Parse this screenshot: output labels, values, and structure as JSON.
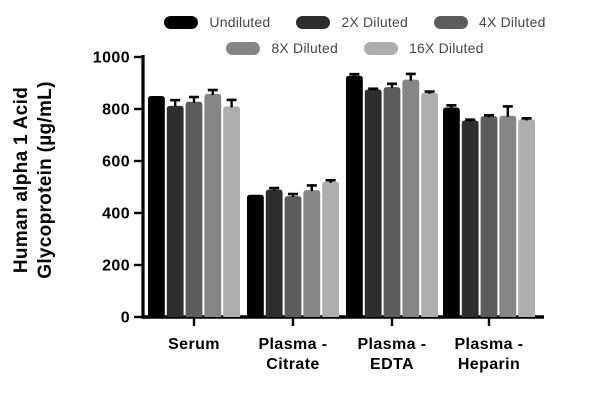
{
  "figure": {
    "background": "#ffffff",
    "axis_color": "#000000",
    "error_bar_color": "#000000",
    "legend_text_color": "#474747"
  },
  "chart_data": {
    "type": "bar",
    "title": "",
    "ylabel": "Human alpha 1 Acid Glycoprotein (µg/mL)",
    "ylabel_lines": [
      "Human alpha 1 Acid",
      "Glycoprotein (µg/mL)"
    ],
    "xlabel": "",
    "categories": [
      "Serum",
      "Plasma - Citrate",
      "Plasma - EDTA",
      "Plasma - Heparin"
    ],
    "category_label_lines": [
      [
        "Serum"
      ],
      [
        "Plasma -",
        "Citrate"
      ],
      [
        "Plasma -",
        "EDTA"
      ],
      [
        "Plasma -",
        "Heparin"
      ]
    ],
    "ylim": [
      0,
      1000
    ],
    "yticks": [
      0,
      200,
      400,
      600,
      800,
      1000
    ],
    "grid": false,
    "legend_position": "top",
    "series": [
      {
        "name": "Undiluted",
        "color": "#000000",
        "values": [
          850,
          470,
          928,
          806
        ],
        "errors": [
          0,
          0,
          6,
          8
        ]
      },
      {
        "name": "2X Diluted",
        "color": "#2e2e2e",
        "values": [
          812,
          490,
          875,
          756
        ],
        "errors": [
          22,
          6,
          3,
          3
        ]
      },
      {
        "name": "4X Diluted",
        "color": "#5c5c5c",
        "values": [
          828,
          465,
          884,
          772
        ],
        "errors": [
          18,
          8,
          13,
          4
        ]
      },
      {
        "name": "8X Diluted",
        "color": "#868686",
        "values": [
          858,
          488,
          913,
          774
        ],
        "errors": [
          15,
          18,
          22,
          36
        ]
      },
      {
        "name": "16X Diluted",
        "color": "#aeaeae",
        "values": [
          810,
          520,
          862,
          760
        ],
        "errors": [
          25,
          6,
          5,
          4
        ]
      }
    ],
    "legend_rows": [
      [
        "Undiluted",
        "2X Diluted",
        "4X Diluted"
      ],
      [
        "8X Diluted",
        "16X Diluted"
      ]
    ]
  }
}
